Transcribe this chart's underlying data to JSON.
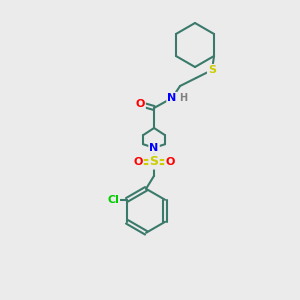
{
  "background_color": "#ebebeb",
  "bond_color": "#3a7a6a",
  "atom_colors": {
    "O": "#ff0000",
    "N": "#0000ff",
    "S": "#cccc00",
    "Cl": "#00cc00",
    "C": "#3a7a6a",
    "H": "#808080"
  },
  "line_width": 1.5,
  "font_size": 8,
  "fig_size": [
    3.0,
    3.0
  ],
  "dpi": 100
}
